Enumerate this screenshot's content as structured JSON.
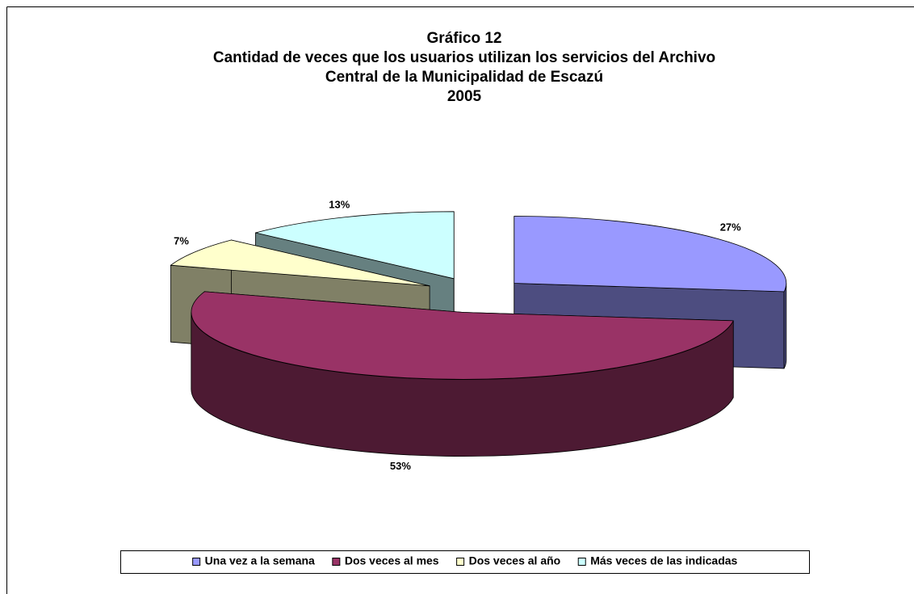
{
  "chart_data": {
    "type": "pie3d",
    "title": [
      "Gráfico 12",
      "Cantidad de veces que los usuarios utilizan los servicios del Archivo",
      "Central de la Municipalidad de Escazú",
      "2005"
    ],
    "categories": [
      "Una vez a la semana",
      "Dos veces al mes",
      "Dos veces al año",
      "Más veces de las indicadas"
    ],
    "values": [
      27,
      53,
      7,
      13
    ],
    "value_labels": [
      "27%",
      "53%",
      "7%",
      "13%"
    ],
    "colors": [
      "#9999ff",
      "#993366",
      "#ffffcc",
      "#ccffff"
    ],
    "legend": "bottom"
  }
}
